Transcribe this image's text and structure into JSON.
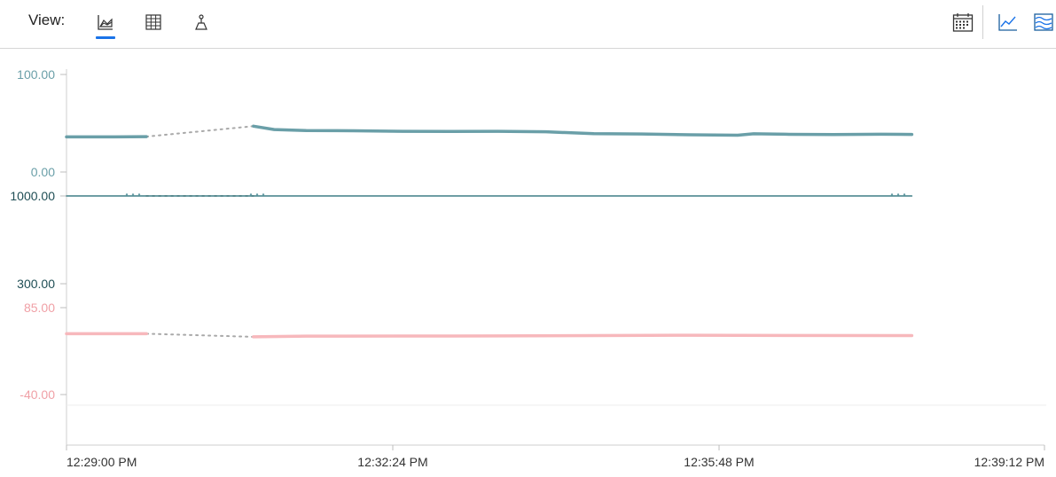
{
  "toolbar": {
    "view_label": "View:",
    "view_buttons": [
      {
        "icon": "area-chart-icon",
        "active": true
      },
      {
        "icon": "grid-table-icon",
        "active": false
      },
      {
        "icon": "scatter-plot-icon",
        "active": false
      }
    ],
    "right_buttons": [
      {
        "icon": "calendar-icon"
      },
      {
        "icon": "line-chart-icon"
      },
      {
        "icon": "stacked-area-icon"
      }
    ],
    "accent_color": "#1a73e8"
  },
  "chart_data": {
    "type": "line",
    "x_ticks": [
      "12:29:00 PM",
      "12:32:24 PM",
      "12:35:48 PM",
      "12:39:12 PM"
    ],
    "x_range": [
      "12:29:00",
      "12:39:12"
    ],
    "lanes": [
      {
        "color": "#6a9fa8",
        "tick_color": "#6a9fa8",
        "y_ticks": [
          "100.00",
          "0.00"
        ],
        "ylim": [
          0,
          100
        ],
        "segments": [
          {
            "x": [
              "12:29:00",
              "12:29:30",
              "12:29:50"
            ],
            "y": [
              36,
              36,
              36.3
            ]
          },
          {
            "x": [
              "12:30:57",
              "12:31:10",
              "12:31:30",
              "12:32:00",
              "12:32:30",
              "12:33:00",
              "12:33:30",
              "12:34:00",
              "12:34:30",
              "12:35:00",
              "12:35:30",
              "12:36:00",
              "12:36:10",
              "12:36:30",
              "12:37:00",
              "12:37:30",
              "12:37:49"
            ],
            "y": [
              47,
              43.5,
              42.5,
              42.3,
              41.7,
              41.6,
              41.7,
              41.2,
              39.3,
              39.0,
              38.2,
              37.7,
              39.2,
              38.7,
              38.4,
              38.8,
              38.5
            ]
          }
        ],
        "gaps": [
          {
            "x": [
              "12:29:50",
              "12:30:57"
            ],
            "y": [
              36.3,
              47
            ]
          }
        ]
      },
      {
        "color": "#3f7f85",
        "tick_color": "#1f4e55",
        "y_ticks": [
          "1000.00",
          "300.00"
        ],
        "ylim": [
          300,
          1000
        ],
        "segments": [
          {
            "x": [
              "12:29:00",
              "12:37:49"
            ],
            "y": [
              1000,
              1000
            ]
          }
        ],
        "gaps": [
          {
            "x": [
              "12:29:50",
              "12:30:57"
            ],
            "y": [
              1000,
              1000
            ]
          }
        ]
      },
      {
        "color": "#f7b8bc",
        "tick_color": "#f0a0a6",
        "y_ticks": [
          "85.00",
          "-40.00"
        ],
        "ylim": [
          -40,
          85
        ],
        "segments": [
          {
            "x": [
              "12:29:00",
              "12:29:50"
            ],
            "y": [
              47.5,
              47.5
            ]
          },
          {
            "x": [
              "12:30:57",
              "12:31:30",
              "12:32:30",
              "12:33:30",
              "12:34:30",
              "12:35:30",
              "12:36:30",
              "12:37:49"
            ],
            "y": [
              43,
              44,
              44.2,
              44.3,
              44.8,
              45.3,
              45,
              44.8
            ]
          }
        ],
        "gaps": [
          {
            "x": [
              "12:29:50",
              "12:30:57"
            ],
            "y": [
              47.5,
              43
            ]
          }
        ]
      }
    ],
    "gap_color": "#a9a9a9",
    "grid": false
  }
}
